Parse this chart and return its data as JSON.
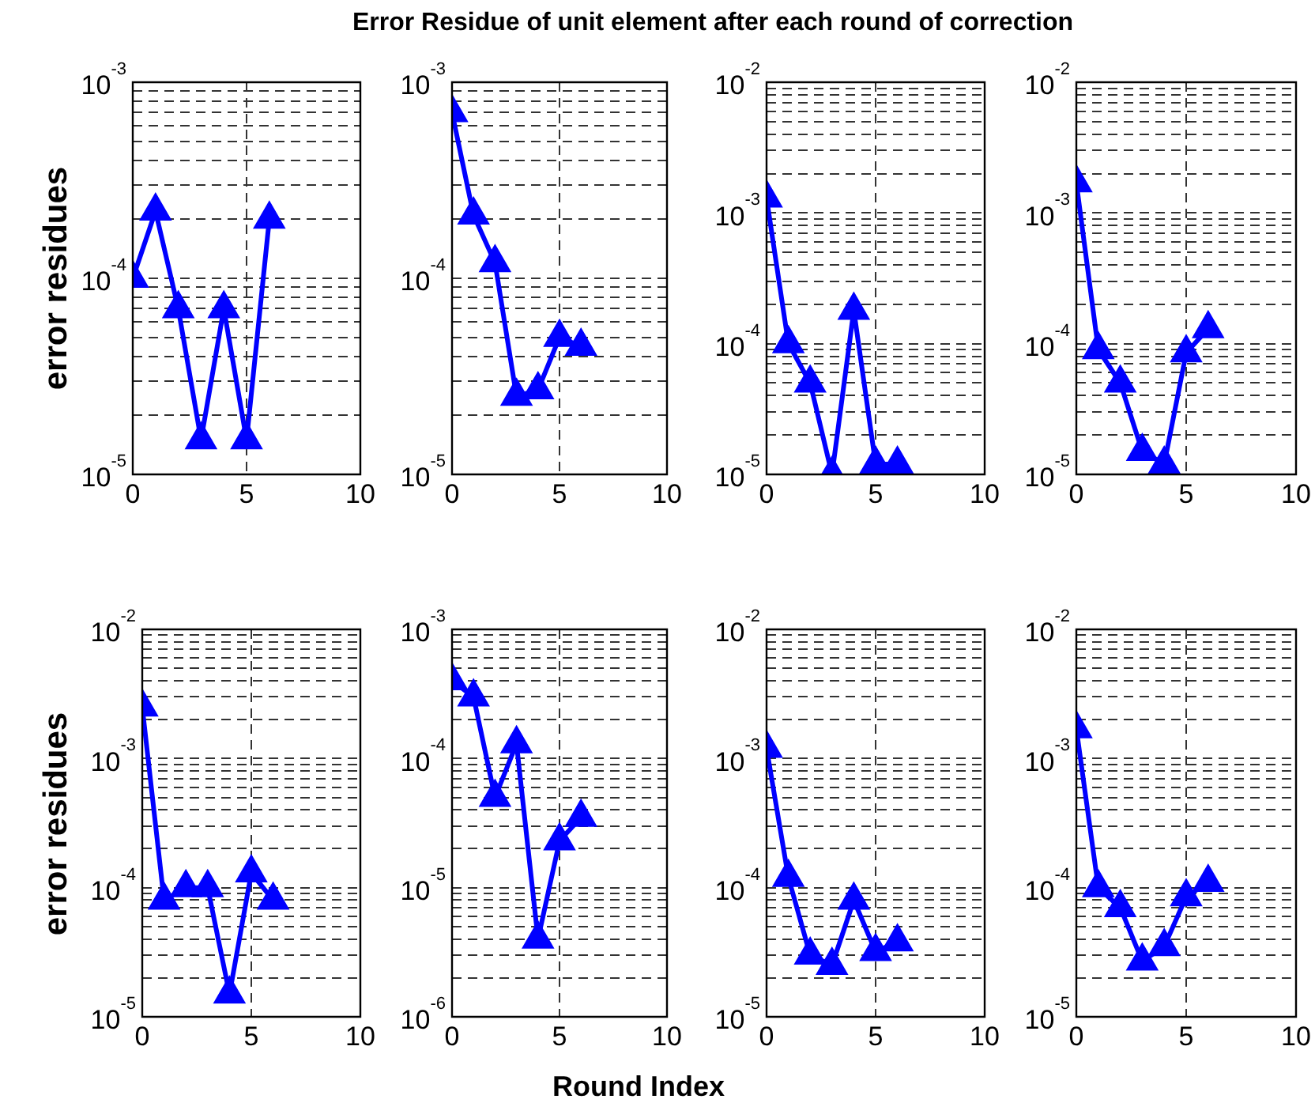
{
  "chart_data": [
    {
      "type": "line",
      "title": "Error Residue of unit element after each round of correction",
      "ylabel": "error residues",
      "x": [
        0,
        1,
        2,
        3,
        4,
        5,
        6
      ],
      "values": [
        0.0001,
        0.00022,
        7e-05,
        1.5e-05,
        7e-05,
        1.5e-05,
        0.0002
      ],
      "color": "#0000ff",
      "marker": "triangle",
      "log": "y",
      "grid": true,
      "xlim": [
        0,
        10
      ],
      "xticks": [
        0,
        5,
        10
      ],
      "ylim": [
        1e-05,
        0.001
      ],
      "yticks": [
        {
          "value": 1e-05,
          "label": "10$^{-5}$"
        },
        {
          "value": 2e-05,
          "label": null
        },
        {
          "value": 3e-05,
          "label": null
        },
        {
          "value": 4e-05,
          "label": null
        },
        {
          "value": 5e-05,
          "label": null
        },
        {
          "value": 6e-05,
          "label": null
        },
        {
          "value": 7e-05,
          "label": null
        },
        {
          "value": 8e-05,
          "label": null
        },
        {
          "value": 9e-05,
          "label": null
        },
        {
          "value": 0.0001,
          "label": "10$^{-4}$"
        },
        {
          "value": 0.0002,
          "label": null
        },
        {
          "value": 0.0003,
          "label": null
        },
        {
          "value": 0.0004,
          "label": null
        },
        {
          "value": 0.0005,
          "label": null
        },
        {
          "value": 0.0006,
          "label": null
        },
        {
          "value": 0.0007,
          "label": null
        },
        {
          "value": 0.0008,
          "label": null
        },
        {
          "value": 0.0009,
          "label": null
        },
        {
          "value": 0.001,
          "label": "10$^{-3}$"
        }
      ]
    },
    {
      "type": "line",
      "x": [
        0,
        1,
        2,
        3,
        4,
        5,
        6
      ],
      "values": [
        0.0007,
        0.00021,
        0.00012,
        2.5e-05,
        2.7e-05,
        5e-05,
        4.5e-05
      ],
      "color": "#0000ff",
      "marker": "triangle",
      "log": "y",
      "grid": true,
      "xlim": [
        0,
        10
      ],
      "xticks": [
        0,
        5,
        10
      ],
      "ylim": [
        1e-05,
        0.001
      ],
      "yticks": [
        {
          "value": 1e-05,
          "label": "10$^{-5}$"
        },
        {
          "value": 2e-05,
          "label": null
        },
        {
          "value": 3e-05,
          "label": null
        },
        {
          "value": 4e-05,
          "label": null
        },
        {
          "value": 5e-05,
          "label": null
        },
        {
          "value": 6e-05,
          "label": null
        },
        {
          "value": 7e-05,
          "label": null
        },
        {
          "value": 8e-05,
          "label": null
        },
        {
          "value": 9e-05,
          "label": null
        },
        {
          "value": 0.0001,
          "label": "10$^{-4}$"
        },
        {
          "value": 0.0002,
          "label": null
        },
        {
          "value": 0.0003,
          "label": null
        },
        {
          "value": 0.0004,
          "label": null
        },
        {
          "value": 0.0005,
          "label": null
        },
        {
          "value": 0.0006,
          "label": null
        },
        {
          "value": 0.0007,
          "label": null
        },
        {
          "value": 0.0008,
          "label": null
        },
        {
          "value": 0.0009,
          "label": null
        },
        {
          "value": 0.001,
          "label": "10$^{-3}$"
        }
      ]
    },
    {
      "type": "line",
      "x": [
        0,
        1,
        2,
        3,
        4,
        5,
        6
      ],
      "values": [
        0.0013,
        0.0001,
        5e-05,
        1e-05,
        0.00018,
        1.2e-05,
        1.2e-05
      ],
      "color": "#0000ff",
      "marker": "triangle",
      "log": "y",
      "grid": true,
      "xlim": [
        0,
        10
      ],
      "xticks": [
        0,
        5,
        10
      ],
      "ylim": [
        1e-05,
        0.01
      ],
      "yticks": [
        {
          "value": 1e-05,
          "label": "10$^{-5}$"
        },
        {
          "value": 2e-05,
          "label": null
        },
        {
          "value": 3e-05,
          "label": null
        },
        {
          "value": 4e-05,
          "label": null
        },
        {
          "value": 5e-05,
          "label": null
        },
        {
          "value": 6e-05,
          "label": null
        },
        {
          "value": 7e-05,
          "label": null
        },
        {
          "value": 8e-05,
          "label": null
        },
        {
          "value": 9e-05,
          "label": null
        },
        {
          "value": 0.0001,
          "label": "10$^{-4}$"
        },
        {
          "value": 0.0002,
          "label": null
        },
        {
          "value": 0.0003,
          "label": null
        },
        {
          "value": 0.0004,
          "label": null
        },
        {
          "value": 0.0005,
          "label": null
        },
        {
          "value": 0.0006,
          "label": null
        },
        {
          "value": 0.0007,
          "label": null
        },
        {
          "value": 0.0008,
          "label": null
        },
        {
          "value": 0.0009,
          "label": null
        },
        {
          "value": 0.001,
          "label": "10$^{-3}$"
        },
        {
          "value": 0.002,
          "label": null
        },
        {
          "value": 0.003,
          "label": null
        },
        {
          "value": 0.004,
          "label": null
        },
        {
          "value": 0.005,
          "label": null
        },
        {
          "value": 0.006,
          "label": null
        },
        {
          "value": 0.007,
          "label": null
        },
        {
          "value": 0.008,
          "label": null
        },
        {
          "value": 0.009,
          "label": null
        },
        {
          "value": 0.01,
          "label": "10$^{-2}$"
        }
      ]
    },
    {
      "type": "line",
      "x": [
        0,
        1,
        2,
        3,
        4,
        5,
        6
      ],
      "values": [
        0.0017,
        9e-05,
        5e-05,
        1.5e-05,
        1.2e-05,
        8.5e-05,
        0.00013
      ],
      "color": "#0000ff",
      "marker": "triangle",
      "log": "y",
      "grid": true,
      "xlim": [
        0,
        10
      ],
      "xticks": [
        0,
        5,
        10
      ],
      "ylim": [
        1e-05,
        0.01
      ],
      "yticks": [
        {
          "value": 1e-05,
          "label": "10$^{-5}$"
        },
        {
          "value": 2e-05,
          "label": null
        },
        {
          "value": 3e-05,
          "label": null
        },
        {
          "value": 4e-05,
          "label": null
        },
        {
          "value": 5e-05,
          "label": null
        },
        {
          "value": 6e-05,
          "label": null
        },
        {
          "value": 7e-05,
          "label": null
        },
        {
          "value": 8e-05,
          "label": null
        },
        {
          "value": 9e-05,
          "label": null
        },
        {
          "value": 0.0001,
          "label": "10$^{-4}$"
        },
        {
          "value": 0.0002,
          "label": null
        },
        {
          "value": 0.0003,
          "label": null
        },
        {
          "value": 0.0004,
          "label": null
        },
        {
          "value": 0.0005,
          "label": null
        },
        {
          "value": 0.0006,
          "label": null
        },
        {
          "value": 0.0007,
          "label": null
        },
        {
          "value": 0.0008,
          "label": null
        },
        {
          "value": 0.0009,
          "label": null
        },
        {
          "value": 0.001,
          "label": "10$^{-3}$"
        },
        {
          "value": 0.002,
          "label": null
        },
        {
          "value": 0.003,
          "label": null
        },
        {
          "value": 0.004,
          "label": null
        },
        {
          "value": 0.005,
          "label": null
        },
        {
          "value": 0.006,
          "label": null
        },
        {
          "value": 0.007,
          "label": null
        },
        {
          "value": 0.008,
          "label": null
        },
        {
          "value": 0.009,
          "label": null
        },
        {
          "value": 0.01,
          "label": "10$^{-2}$"
        }
      ]
    },
    {
      "type": "line",
      "ylabel": "error residues",
      "x": [
        0,
        1,
        2,
        3,
        4,
        5,
        6
      ],
      "values": [
        0.0025,
        8e-05,
        0.0001,
        0.0001,
        1.5e-05,
        0.00013,
        8e-05
      ],
      "color": "#0000ff",
      "marker": "triangle",
      "log": "y",
      "grid": true,
      "xlim": [
        0,
        10
      ],
      "xticks": [
        0,
        5,
        10
      ],
      "ylim": [
        1e-05,
        0.01
      ],
      "yticks": [
        {
          "value": 1e-05,
          "label": "10$^{-5}$"
        },
        {
          "value": 2e-05,
          "label": null
        },
        {
          "value": 3e-05,
          "label": null
        },
        {
          "value": 4e-05,
          "label": null
        },
        {
          "value": 5e-05,
          "label": null
        },
        {
          "value": 6e-05,
          "label": null
        },
        {
          "value": 7e-05,
          "label": null
        },
        {
          "value": 8e-05,
          "label": null
        },
        {
          "value": 9e-05,
          "label": null
        },
        {
          "value": 0.0001,
          "label": "10$^{-4}$"
        },
        {
          "value": 0.0002,
          "label": null
        },
        {
          "value": 0.0003,
          "label": null
        },
        {
          "value": 0.0004,
          "label": null
        },
        {
          "value": 0.0005,
          "label": null
        },
        {
          "value": 0.0006,
          "label": null
        },
        {
          "value": 0.0007,
          "label": null
        },
        {
          "value": 0.0008,
          "label": null
        },
        {
          "value": 0.0009,
          "label": null
        },
        {
          "value": 0.001,
          "label": "10$^{-3}$"
        },
        {
          "value": 0.002,
          "label": null
        },
        {
          "value": 0.003,
          "label": null
        },
        {
          "value": 0.004,
          "label": null
        },
        {
          "value": 0.005,
          "label": null
        },
        {
          "value": 0.006,
          "label": null
        },
        {
          "value": 0.007,
          "label": null
        },
        {
          "value": 0.008,
          "label": null
        },
        {
          "value": 0.009,
          "label": null
        },
        {
          "value": 0.01,
          "label": "10$^{-2}$"
        }
      ]
    },
    {
      "type": "line",
      "xlabel": "Round Index",
      "x": [
        0,
        1,
        2,
        3,
        4,
        5,
        6
      ],
      "values": [
        0.0004,
        0.0003,
        5e-05,
        0.00013,
        4e-06,
        2.3e-05,
        3.5e-05
      ],
      "color": "#0000ff",
      "marker": "triangle",
      "log": "y",
      "grid": true,
      "xlim": [
        0,
        10
      ],
      "xticks": [
        0,
        5,
        10
      ],
      "ylim": [
        1e-06,
        0.001
      ],
      "yticks": [
        {
          "value": 1e-06,
          "label": "10$^{-6}$"
        },
        {
          "value": 2e-06,
          "label": null
        },
        {
          "value": 3e-06,
          "label": null
        },
        {
          "value": 4e-06,
          "label": null
        },
        {
          "value": 5e-06,
          "label": null
        },
        {
          "value": 6e-06,
          "label": null
        },
        {
          "value": 7e-06,
          "label": null
        },
        {
          "value": 8e-06,
          "label": null
        },
        {
          "value": 9e-06,
          "label": null
        },
        {
          "value": 1e-05,
          "label": "10$^{-5}$"
        },
        {
          "value": 2e-05,
          "label": null
        },
        {
          "value": 3e-05,
          "label": null
        },
        {
          "value": 4e-05,
          "label": null
        },
        {
          "value": 5e-05,
          "label": null
        },
        {
          "value": 6e-05,
          "label": null
        },
        {
          "value": 7e-05,
          "label": null
        },
        {
          "value": 8e-05,
          "label": null
        },
        {
          "value": 9e-05,
          "label": null
        },
        {
          "value": 0.0001,
          "label": "10$^{-4}$"
        },
        {
          "value": 0.0002,
          "label": null
        },
        {
          "value": 0.0003,
          "label": null
        },
        {
          "value": 0.0004,
          "label": null
        },
        {
          "value": 0.0005,
          "label": null
        },
        {
          "value": 0.0006,
          "label": null
        },
        {
          "value": 0.0007,
          "label": null
        },
        {
          "value": 0.0008,
          "label": null
        },
        {
          "value": 0.0009,
          "label": null
        },
        {
          "value": 0.001,
          "label": "10$^{-3}$"
        }
      ]
    },
    {
      "type": "line",
      "x": [
        0,
        1,
        2,
        3,
        4,
        5,
        6
      ],
      "values": [
        0.0012,
        0.00012,
        3e-05,
        2.5e-05,
        8e-05,
        3.2e-05,
        3.8e-05
      ],
      "color": "#0000ff",
      "marker": "triangle",
      "log": "y",
      "grid": true,
      "xlim": [
        0,
        10
      ],
      "xticks": [
        0,
        5,
        10
      ],
      "ylim": [
        1e-05,
        0.01
      ],
      "yticks": [
        {
          "value": 1e-05,
          "label": "10$^{-5}$"
        },
        {
          "value": 2e-05,
          "label": null
        },
        {
          "value": 3e-05,
          "label": null
        },
        {
          "value": 4e-05,
          "label": null
        },
        {
          "value": 5e-05,
          "label": null
        },
        {
          "value": 6e-05,
          "label": null
        },
        {
          "value": 7e-05,
          "label": null
        },
        {
          "value": 8e-05,
          "label": null
        },
        {
          "value": 9e-05,
          "label": null
        },
        {
          "value": 0.0001,
          "label": "10$^{-4}$"
        },
        {
          "value": 0.0002,
          "label": null
        },
        {
          "value": 0.0003,
          "label": null
        },
        {
          "value": 0.0004,
          "label": null
        },
        {
          "value": 0.0005,
          "label": null
        },
        {
          "value": 0.0006,
          "label": null
        },
        {
          "value": 0.0007,
          "label": null
        },
        {
          "value": 0.0008,
          "label": null
        },
        {
          "value": 0.0009,
          "label": null
        },
        {
          "value": 0.001,
          "label": "10$^{-3}$"
        },
        {
          "value": 0.002,
          "label": null
        },
        {
          "value": 0.003,
          "label": null
        },
        {
          "value": 0.004,
          "label": null
        },
        {
          "value": 0.005,
          "label": null
        },
        {
          "value": 0.006,
          "label": null
        },
        {
          "value": 0.007,
          "label": null
        },
        {
          "value": 0.008,
          "label": null
        },
        {
          "value": 0.009,
          "label": null
        },
        {
          "value": 0.01,
          "label": "10$^{-2}$"
        }
      ]
    },
    {
      "type": "line",
      "x": [
        0,
        1,
        2,
        3,
        4,
        5,
        6
      ],
      "values": [
        0.0017,
        0.0001,
        7e-05,
        2.7e-05,
        3.5e-05,
        8.5e-05,
        0.00011
      ],
      "color": "#0000ff",
      "marker": "triangle",
      "log": "y",
      "grid": true,
      "xlim": [
        0,
        10
      ],
      "xticks": [
        0,
        5,
        10
      ],
      "ylim": [
        1e-05,
        0.01
      ],
      "yticks": [
        {
          "value": 1e-05,
          "label": "10$^{-5}$"
        },
        {
          "value": 2e-05,
          "label": null
        },
        {
          "value": 3e-05,
          "label": null
        },
        {
          "value": 4e-05,
          "label": null
        },
        {
          "value": 5e-05,
          "label": null
        },
        {
          "value": 6e-05,
          "label": null
        },
        {
          "value": 7e-05,
          "label": null
        },
        {
          "value": 8e-05,
          "label": null
        },
        {
          "value": 9e-05,
          "label": null
        },
        {
          "value": 0.0001,
          "label": "10$^{-4}$"
        },
        {
          "value": 0.0002,
          "label": null
        },
        {
          "value": 0.0003,
          "label": null
        },
        {
          "value": 0.0004,
          "label": null
        },
        {
          "value": 0.0005,
          "label": null
        },
        {
          "value": 0.0006,
          "label": null
        },
        {
          "value": 0.0007,
          "label": null
        },
        {
          "value": 0.0008,
          "label": null
        },
        {
          "value": 0.0009,
          "label": null
        },
        {
          "value": 0.001,
          "label": "10$^{-3}$"
        },
        {
          "value": 0.002,
          "label": null
        },
        {
          "value": 0.003,
          "label": null
        },
        {
          "value": 0.004,
          "label": null
        },
        {
          "value": 0.005,
          "label": null
        },
        {
          "value": 0.006,
          "label": null
        },
        {
          "value": 0.007,
          "label": null
        },
        {
          "value": 0.008,
          "label": null
        },
        {
          "value": 0.009,
          "label": null
        },
        {
          "value": 0.01,
          "label": "10$^{-2}$"
        }
      ]
    }
  ]
}
